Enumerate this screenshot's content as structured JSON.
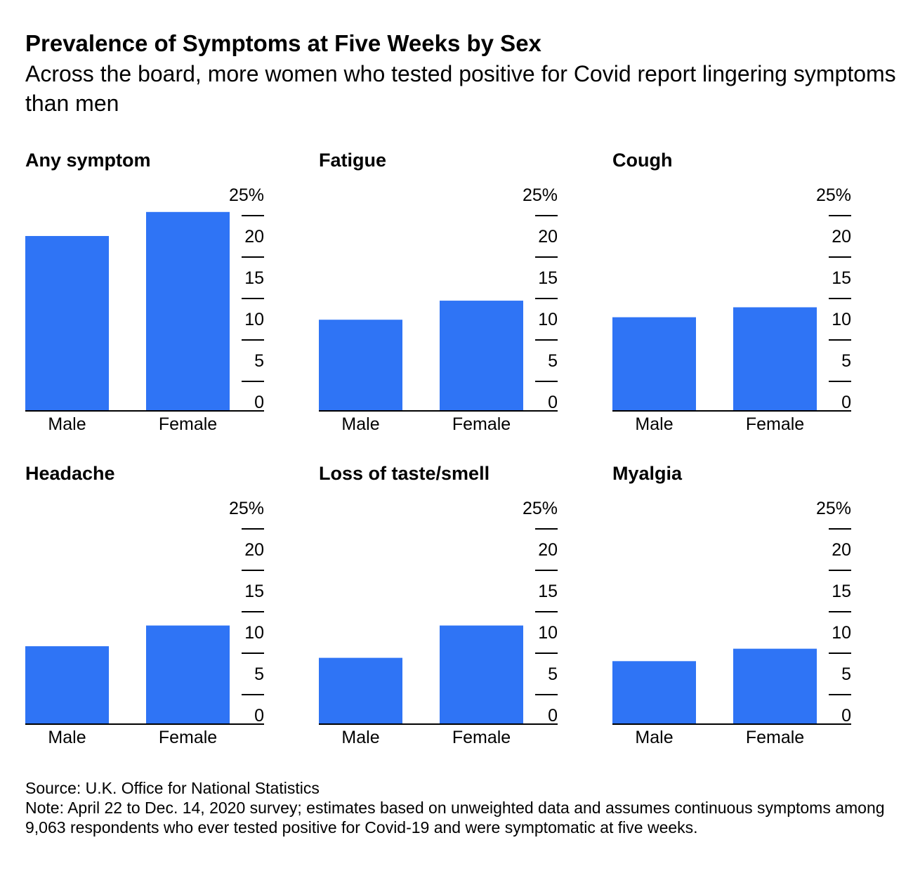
{
  "title": "Prevalence of Symptoms at Five Weeks by Sex",
  "subtitle": "Across the board, more women who tested positive for Covid report lingering symptoms than men",
  "source": "Source: U.K. Office for National Statistics",
  "note": "Note: April 22 to Dec. 14, 2020 survey; estimates based on unweighted data and assumes continuous symptoms among 9,063 respondents who ever tested positive for Covid-19 and were symptomatic at five weeks.",
  "colors": {
    "bar": "#2f74f5",
    "axis": "#000000"
  },
  "chart_data": [
    {
      "type": "bar",
      "title": "Any symptom",
      "categories": [
        "Male",
        "Female"
      ],
      "values": [
        21.1,
        24.0
      ],
      "ylim": [
        0,
        25
      ],
      "ticks": [
        "25%",
        "20",
        "15",
        "10",
        "5",
        "0"
      ]
    },
    {
      "type": "bar",
      "title": "Fatigue",
      "categories": [
        "Male",
        "Female"
      ],
      "values": [
        11.0,
        13.3
      ],
      "ylim": [
        0,
        25
      ],
      "ticks": [
        "25%",
        "20",
        "15",
        "10",
        "5",
        "0"
      ]
    },
    {
      "type": "bar",
      "title": "Cough",
      "categories": [
        "Male",
        "Female"
      ],
      "values": [
        11.3,
        12.5
      ],
      "ylim": [
        0,
        25
      ],
      "ticks": [
        "25%",
        "20",
        "15",
        "10",
        "5",
        "0"
      ]
    },
    {
      "type": "bar",
      "title": "Headache",
      "categories": [
        "Male",
        "Female"
      ],
      "values": [
        9.4,
        11.9
      ],
      "ylim": [
        0,
        25
      ],
      "ticks": [
        "25%",
        "20",
        "15",
        "10",
        "5",
        "0"
      ]
    },
    {
      "type": "bar",
      "title": "Loss of taste/smell",
      "categories": [
        "Male",
        "Female"
      ],
      "values": [
        8.0,
        11.9
      ],
      "ylim": [
        0,
        25
      ],
      "ticks": [
        "25%",
        "20",
        "15",
        "10",
        "5",
        "0"
      ]
    },
    {
      "type": "bar",
      "title": "Myalgia",
      "categories": [
        "Male",
        "Female"
      ],
      "values": [
        7.6,
        9.1
      ],
      "ylim": [
        0,
        25
      ],
      "ticks": [
        "25%",
        "20",
        "15",
        "10",
        "5",
        "0"
      ]
    }
  ]
}
